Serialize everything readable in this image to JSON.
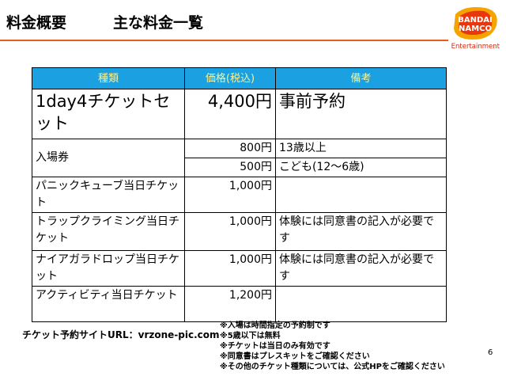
{
  "header": {
    "title": "料金概要",
    "subtitle": "主な料金一覧",
    "logo": {
      "line1": "BANDAI",
      "line2": "NAMCO",
      "line3": "Entertainment"
    }
  },
  "table": {
    "headers": [
      "種類",
      "価格(税込)",
      "備考"
    ],
    "rows": [
      {
        "type": "1day4チケットセット",
        "price": "4,400円",
        "note": "事前予約"
      },
      {
        "type": "入場券",
        "price": "800円",
        "note": "13歳以上"
      },
      {
        "type": "",
        "price": "500円",
        "note": "こども(12〜6歳)"
      },
      {
        "type": "パニックキューブ当日チケット",
        "price": "1,000円",
        "note": ""
      },
      {
        "type": "トラップクライミング当日チケット",
        "price": "1,000円",
        "note": "体験には同意書の記入が必要です"
      },
      {
        "type": "ナイアガラドロップ当日チケット",
        "price": "1,000円",
        "note": "体験には同意書の記入が必要です"
      },
      {
        "type": "アクティビティ当日チケット",
        "price": "1,200円",
        "note": ""
      }
    ]
  },
  "footer": {
    "url_label": "チケット予約サイトURL：",
    "url": "vrzone-pic.com",
    "notes": [
      "※入場は時間指定の予約制です",
      "※5歳以下は無料",
      "※チケットは当日のみ有効です",
      "※同意書はプレスキットをご確認ください",
      "※その他のチケット種類については、公式HPをご確認ください"
    ],
    "page": "6"
  },
  "colors": {
    "header_bg": "#1ba1e2",
    "header_text": "#f4f39a",
    "rule": "#e85d1e"
  }
}
